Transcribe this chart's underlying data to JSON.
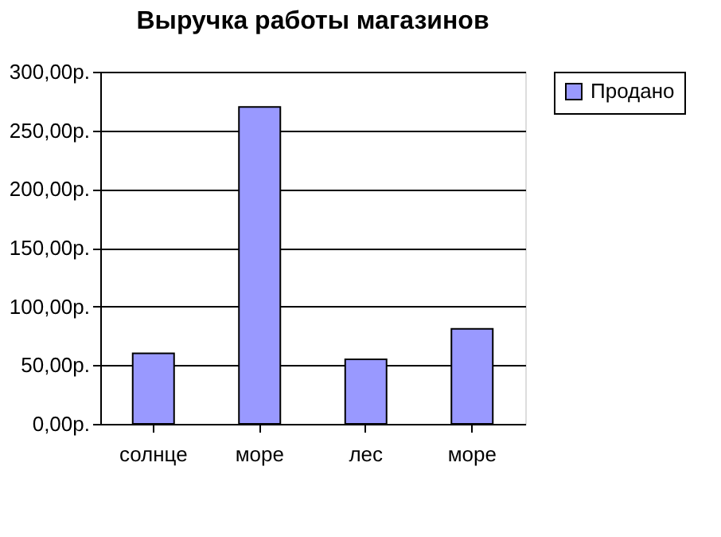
{
  "chart_data": {
    "type": "bar",
    "title": "Выручка работы магазинов",
    "categories": [
      "солнце",
      "море",
      "лес",
      "море"
    ],
    "series": [
      {
        "name": "Продано",
        "color": "#9999ff",
        "values": [
          60,
          270,
          55,
          81
        ]
      }
    ],
    "ylim": [
      0,
      300
    ],
    "yticks": [
      {
        "value": 0,
        "label": "0,00р."
      },
      {
        "value": 50,
        "label": "50,00р."
      },
      {
        "value": 100,
        "label": "100,00р."
      },
      {
        "value": 150,
        "label": "150,00р."
      },
      {
        "value": 200,
        "label": "200,00р."
      },
      {
        "value": 250,
        "label": "250,00р."
      },
      {
        "value": 300,
        "label": "300,00р."
      }
    ],
    "grid": "y",
    "legend": "right"
  }
}
